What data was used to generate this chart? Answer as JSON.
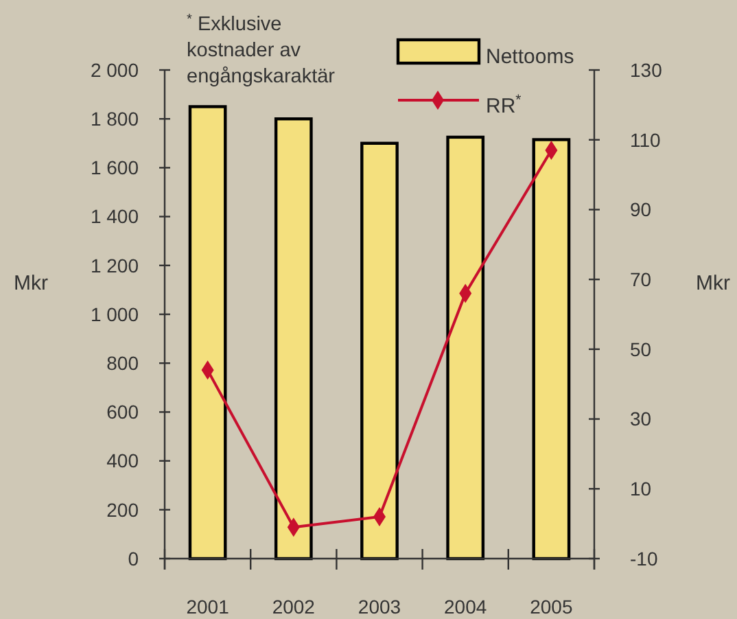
{
  "chart_data": {
    "type": "bar",
    "categories": [
      "2001",
      "2002",
      "2003",
      "2004",
      "2005"
    ],
    "series": [
      {
        "name": "Nettooms",
        "color": "#f4e07e",
        "values": [
          1850,
          1800,
          1700,
          1725,
          1715
        ]
      },
      {
        "name": "RR$^{*}$",
        "type": "line",
        "axis": "y2",
        "color": "#c8102e",
        "marker": "diamond",
        "values": [
          44,
          -1,
          2,
          66,
          107
        ]
      }
    ],
    "ylabel": "Mkr",
    "y2label": "Mkr",
    "ylim": [
      0,
      2000
    ],
    "yticks": [
      0,
      200,
      400,
      600,
      800,
      {
        "value": 1000,
        "label": "1 000"
      },
      {
        "value": 1200,
        "label": "1 200"
      },
      {
        "value": 1400,
        "label": "1 400"
      },
      {
        "value": 1600,
        "label": "1 600"
      },
      {
        "value": 1800,
        "label": "1 800"
      },
      {
        "value": 2000,
        "label": "2 000"
      }
    ],
    "y2lim": [
      -10,
      130
    ],
    "y2ticks": [
      -10,
      10,
      30,
      50,
      70,
      90,
      110,
      130
    ],
    "annotations": [
      "$^{*}$ Exklusive kostnader av engångskaraktär"
    ],
    "legend": "top right",
    "grid": false
  }
}
